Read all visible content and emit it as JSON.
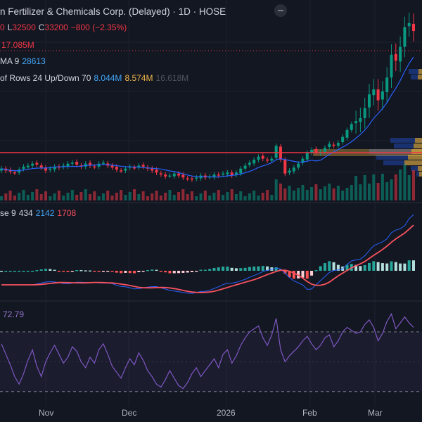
{
  "header": {
    "title": "n Fertilizer & Chemicals Corp. (Delayed) · 1D · HOSE",
    "ohlc": {
      "o_tail": "0",
      "l_label": "L",
      "l_value": "32500",
      "c_label": "C",
      "c_value": "33200",
      "change": "−800 (−2.35%)"
    },
    "volume_value": "17.085M",
    "ma_label": "MA 9",
    "ma_value": "28613",
    "vp_label": "of Rows 24 Up/Down 70",
    "vp_up": "8.044M",
    "vp_down": "8.574M",
    "vp_total": "16.618M"
  },
  "macd_header": {
    "label": "se 9",
    "v1": "434",
    "v2": "2142",
    "v3": "1708"
  },
  "rsi_header": {
    "value": "72.79"
  },
  "x_axis": [
    "Nov",
    "Dec",
    "2026",
    "Feb",
    "Mar"
  ],
  "colors": {
    "up": "#089981",
    "down": "#f23645",
    "bg": "#131722",
    "ma": "#2962ff",
    "macd": "#2962ff",
    "signal": "#f7525f",
    "rsi": "#7e57c2",
    "level": "#f23645"
  },
  "chart_data": [
    {
      "type": "candlestick",
      "x_ticks": [
        "Nov",
        "Dec",
        "2026",
        "Feb",
        "Mar"
      ],
      "last_close": 33200,
      "low": 32500,
      "change": -800,
      "change_pct": -2.35,
      "ma_period": 9,
      "ma_value": 28613,
      "close_path": [
        19.3,
        19.1,
        19.0,
        18.9,
        19.2,
        19.5,
        19.6,
        19.8,
        19.7,
        19.4,
        19.1,
        19.3,
        19.5,
        19.4,
        19.6,
        19.8,
        19.9,
        19.7,
        19.5,
        19.8,
        19.6,
        19.5,
        19.8,
        19.9,
        19.6,
        19.4,
        19.2,
        19.1,
        19.3,
        19.5,
        19.4,
        19.6,
        19.5,
        19.3,
        19.1,
        18.9,
        18.7,
        18.5,
        18.6,
        18.8,
        18.6,
        18.4,
        18.3,
        18.2,
        18.4,
        18.6,
        18.4,
        18.5,
        18.7,
        18.6,
        18.8,
        18.9,
        18.6,
        18.9,
        19.3,
        19.6,
        19.9,
        20.2,
        20.5,
        20.3,
        20.1,
        20.3,
        21.6,
        20.2,
        18.8,
        19.1,
        19.4,
        19.8,
        20.3,
        20.9,
        21.2,
        20.9,
        21.0,
        21.4,
        21.8,
        21.6,
        21.9,
        22.5,
        23.2,
        23.8,
        24.1,
        24.4,
        25.4,
        26.8,
        27.3,
        26.2,
        27.1,
        28.5,
        30.8,
        30.2,
        31.6,
        33.6,
        34.0,
        33.2
      ]
    },
    {
      "type": "bar",
      "series_name": "Volume",
      "last_value": "17.085M"
    },
    {
      "type": "volume_profile",
      "rows": 24,
      "up_volume": "8.044M",
      "down_volume": "8.574M",
      "total_volume": "16.618M"
    },
    {
      "type": "line",
      "indicator": "MACD",
      "signal_period": 9,
      "values": {
        "histogram": 434,
        "macd": 2142,
        "signal": 1708
      }
    },
    {
      "type": "line",
      "indicator": "RSI",
      "last_value": 72.79,
      "bands": [
        70,
        30
      ],
      "series": [
        62,
        55,
        48,
        40,
        35,
        42,
        51,
        58,
        47,
        40,
        50,
        56,
        61,
        55,
        49,
        53,
        60,
        57,
        50,
        46,
        53,
        49,
        58,
        62,
        55,
        47,
        43,
        39,
        46,
        52,
        48,
        56,
        51,
        44,
        40,
        35,
        33,
        38,
        44,
        39,
        34,
        32,
        36,
        42,
        46,
        40,
        44,
        48,
        52,
        46,
        55,
        58,
        49,
        54,
        61,
        66,
        70,
        72,
        74,
        66,
        61,
        68,
        79,
        58,
        50,
        54,
        57,
        60,
        64,
        67,
        62,
        58,
        61,
        66,
        68,
        60,
        64,
        70,
        73,
        71,
        69,
        70,
        75,
        78,
        73,
        64,
        69,
        77,
        82,
        72,
        76,
        80,
        76,
        73
      ]
    }
  ]
}
